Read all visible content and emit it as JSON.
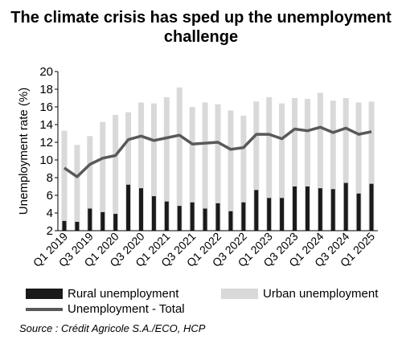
{
  "title": "The climate crisis has sped up the unemployment challenge",
  "source": "Source : Crédit Agricole S.A./ECO, HCP",
  "colors": {
    "rural": "#1a1a1a",
    "urban": "#d9d9d9",
    "total": "#595959"
  },
  "chart_data": {
    "type": "bar",
    "title": "The climate crisis has sped up the unemployment challenge",
    "ylabel": "Unemployment rate (%)",
    "ylim": [
      2,
      20
    ],
    "yticks": [
      2,
      4,
      6,
      8,
      10,
      12,
      14,
      16,
      18,
      20
    ],
    "categories": [
      "Q1 2019",
      "Q2 2019",
      "Q3 2019",
      "Q4 2019",
      "Q1 2020",
      "Q2 2020",
      "Q3 2020",
      "Q4 2020",
      "Q1 2021",
      "Q2 2021",
      "Q3 2021",
      "Q4 2021",
      "Q1 2022",
      "Q2 2022",
      "Q3 2022",
      "Q4 2022",
      "Q1 2023",
      "Q2 2023",
      "Q3 2023",
      "Q4 2023",
      "Q1 2024",
      "Q2 2024",
      "Q3 2024",
      "Q4 2024",
      "Q1 2025"
    ],
    "tick_labels": [
      "Q1 2019",
      "",
      "Q3 2019",
      "",
      "Q1 2020",
      "",
      "Q3 2020",
      "",
      "Q1 2021",
      "",
      "Q3 2021",
      "",
      "Q1 2022",
      "",
      "Q3 2022",
      "",
      "Q1 2023",
      "",
      "Q3 2023",
      "",
      "Q1 2024",
      "",
      "Q3 2024",
      "",
      "Q1 2025"
    ],
    "series": [
      {
        "name": "Rural unemployment",
        "type": "bar",
        "values": [
          3.1,
          3.0,
          4.5,
          4.1,
          3.9,
          7.2,
          6.8,
          5.9,
          5.3,
          4.8,
          5.2,
          4.5,
          5.1,
          4.2,
          5.2,
          6.6,
          5.7,
          5.7,
          7.0,
          7.0,
          6.8,
          6.7,
          7.4,
          6.2,
          7.3
        ]
      },
      {
        "name": "Urban unemployment",
        "type": "bar",
        "values": [
          13.3,
          11.7,
          12.7,
          14.3,
          15.1,
          15.4,
          16.5,
          16.4,
          17.1,
          18.2,
          16.0,
          16.5,
          16.3,
          15.6,
          15.0,
          16.6,
          17.1,
          16.4,
          17.0,
          16.9,
          17.6,
          16.7,
          17.0,
          16.5,
          16.6
        ]
      },
      {
        "name": "Unemployment - Total",
        "type": "line",
        "values": [
          9.1,
          8.1,
          9.5,
          10.2,
          10.5,
          12.3,
          12.7,
          12.2,
          12.5,
          12.8,
          11.8,
          11.9,
          12.0,
          11.2,
          11.4,
          12.9,
          12.9,
          12.4,
          13.5,
          13.3,
          13.7,
          13.1,
          13.6,
          12.9,
          13.2
        ]
      }
    ],
    "grid": false,
    "legend": "bottom"
  }
}
